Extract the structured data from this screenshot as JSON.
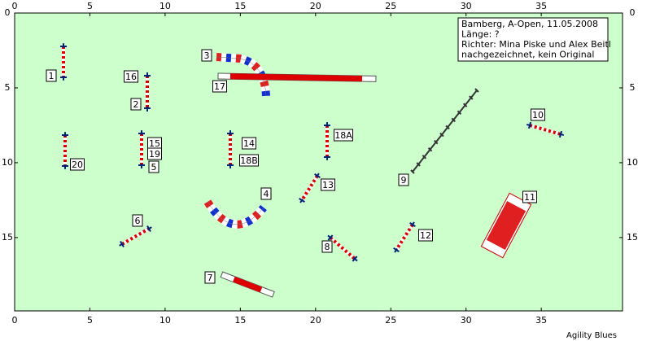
{
  "axes": {
    "xlim": [
      0,
      40.4
    ],
    "ylim": [
      0,
      19.9
    ],
    "x_ticks": [
      0,
      5,
      10,
      15,
      20,
      25,
      30,
      35
    ],
    "y_ticks": [
      0,
      5,
      10,
      15
    ]
  },
  "info": {
    "lines": [
      "Bamberg, A-Open, 11.05.2008",
      "Länge: ?",
      "Richter: Mina Piske und Alex Beitl",
      "nachgezeichnet, kein Original"
    ]
  },
  "obstacle_labels": [
    "1",
    "2",
    "3",
    "4",
    "5",
    "6",
    "7",
    "8",
    "9",
    "10",
    "11",
    "12",
    "13",
    "14",
    "15",
    "16",
    "17",
    "18A",
    "18B",
    "19",
    "20"
  ],
  "footer": "Agility Blues"
}
